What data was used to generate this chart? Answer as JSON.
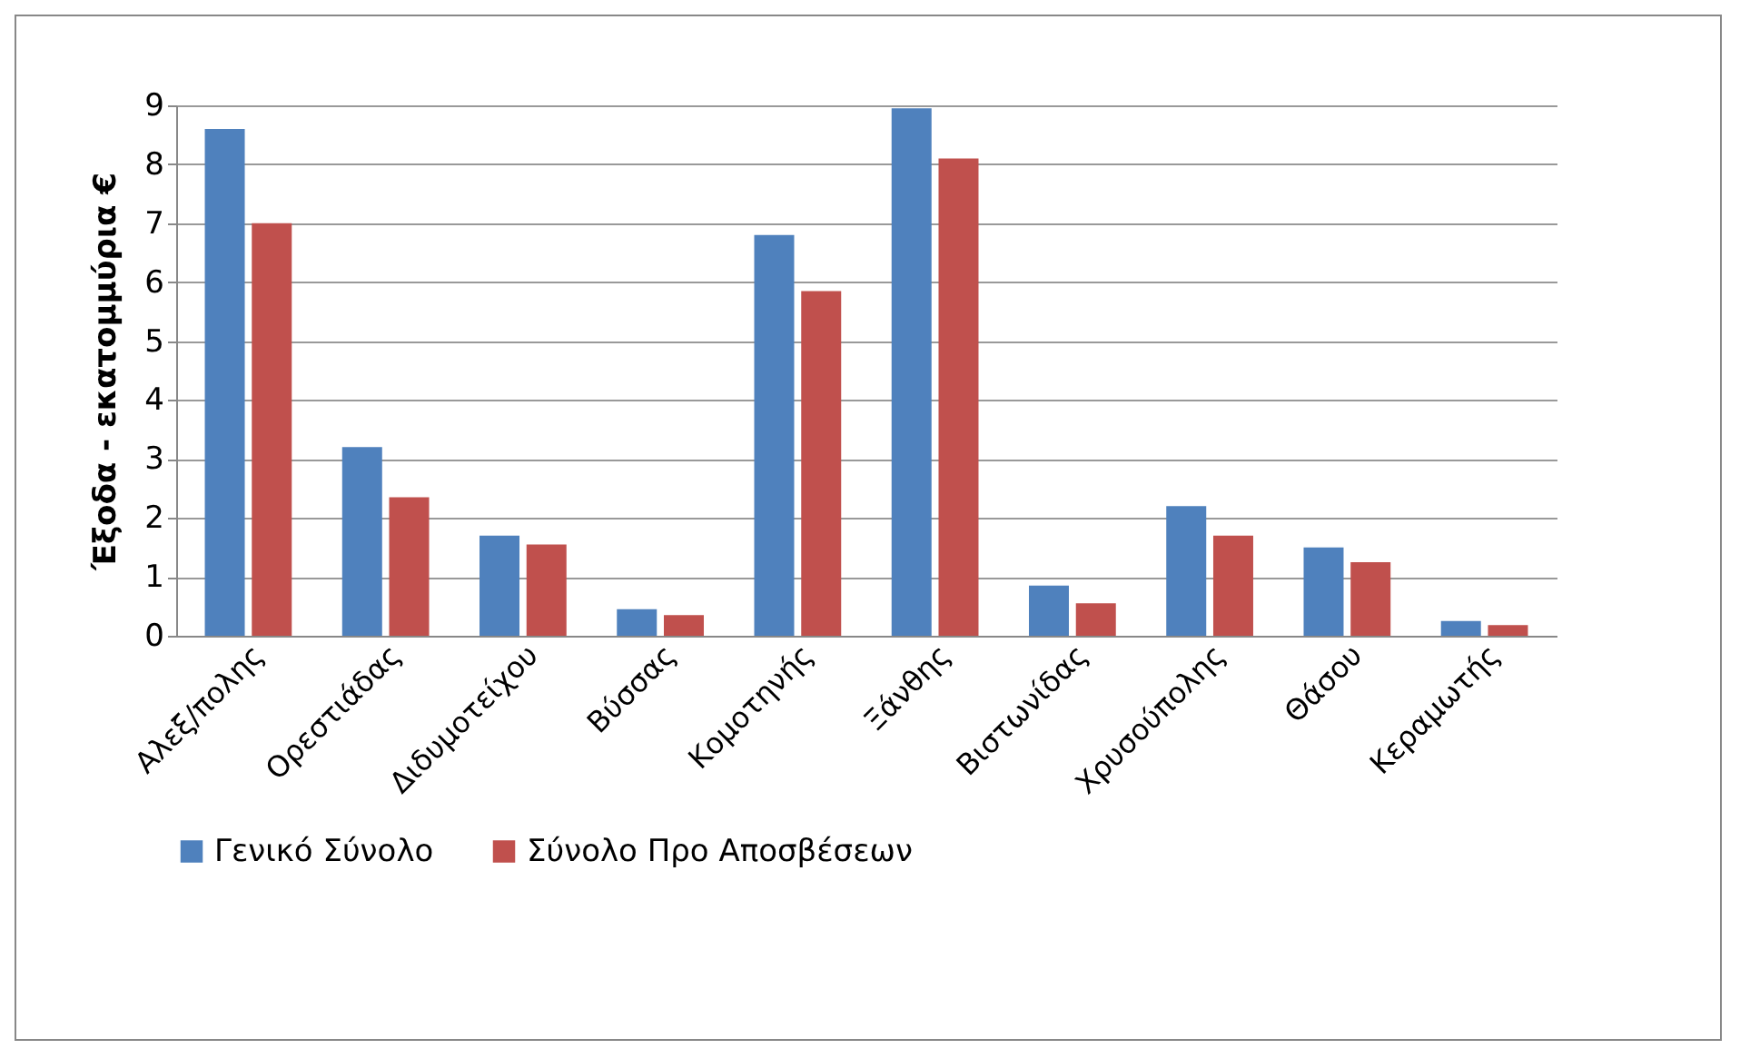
{
  "chart_data": {
    "type": "bar",
    "ylabel": "Έξοδα - εκατομμύρια €",
    "categories": [
      "Αλεξ/πολης",
      "Ορεστιάδας",
      "Διδυμοτείχου",
      "Βύσσας",
      "Κομοτηνής",
      "Ξάνθης",
      "Βιστωνίδας",
      "Χρυσούπολης",
      "Θάσου",
      "Κεραμωτής"
    ],
    "series": [
      {
        "name": "Γενικό Σύνολο",
        "color": "#4f81bd",
        "values": [
          8.6,
          3.2,
          1.7,
          0.45,
          6.8,
          8.95,
          0.85,
          2.2,
          1.5,
          0.25
        ]
      },
      {
        "name": "Σύνολο Προ Αποσβέσεων",
        "color": "#c0504d",
        "values": [
          7.0,
          2.35,
          1.55,
          0.35,
          5.85,
          8.1,
          0.55,
          1.7,
          1.25,
          0.18
        ]
      }
    ],
    "ylim": [
      0,
      9
    ],
    "yticks": [
      0,
      1,
      2,
      3,
      4,
      5,
      6,
      7,
      8,
      9
    ],
    "grid": "y",
    "legend": "bottom"
  }
}
